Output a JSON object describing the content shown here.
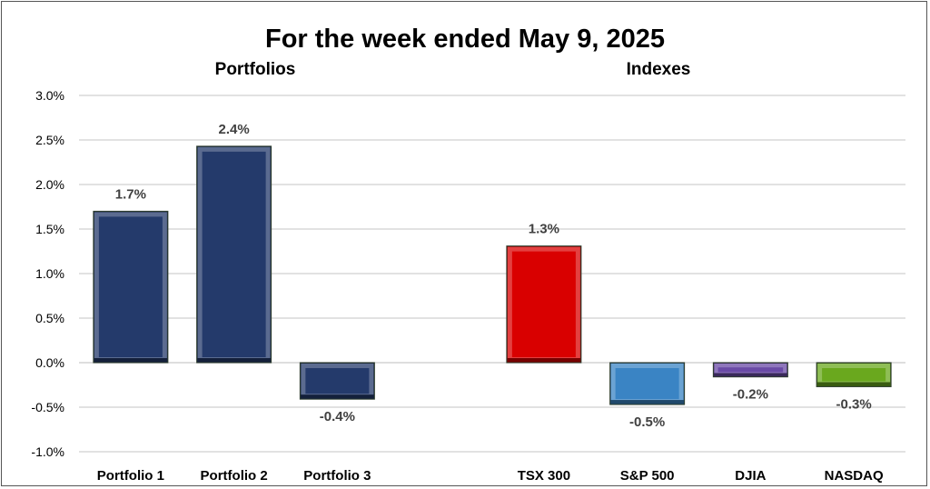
{
  "chart_data": {
    "type": "bar",
    "title": "For the week ended May 9, 2025",
    "group_labels": [
      "Portfolios",
      "Indexes"
    ],
    "categories": [
      "Portfolio 1",
      "Portfolio 2",
      "Portfolio 3",
      "",
      "TSX 300",
      "S&P 500",
      "DJIA",
      "NASDAQ"
    ],
    "values": [
      1.7,
      2.43,
      -0.41,
      null,
      1.31,
      -0.47,
      -0.16,
      -0.27
    ],
    "data_labels": [
      "1.7%",
      "2.4%",
      "-0.4%",
      "",
      "1.3%",
      "-0.5%",
      "-0.2%",
      "-0.3%"
    ],
    "colors": [
      "#243a6b",
      "#243a6b",
      "#243a6b",
      "",
      "#d90000",
      "#3a84c4",
      "#6a4aa6",
      "#6aa81e"
    ],
    "ylim": [
      -1.0,
      3.0
    ],
    "yticks": [
      "-1.0%",
      "-0.5%",
      "0.0%",
      "0.5%",
      "1.0%",
      "1.5%",
      "2.0%",
      "2.5%",
      "3.0%"
    ],
    "ytick_values": [
      -1.0,
      -0.5,
      0.0,
      0.5,
      1.0,
      1.5,
      2.0,
      2.5,
      3.0
    ],
    "xlabel": "",
    "ylabel": "",
    "grid": true,
    "legend": "none"
  }
}
